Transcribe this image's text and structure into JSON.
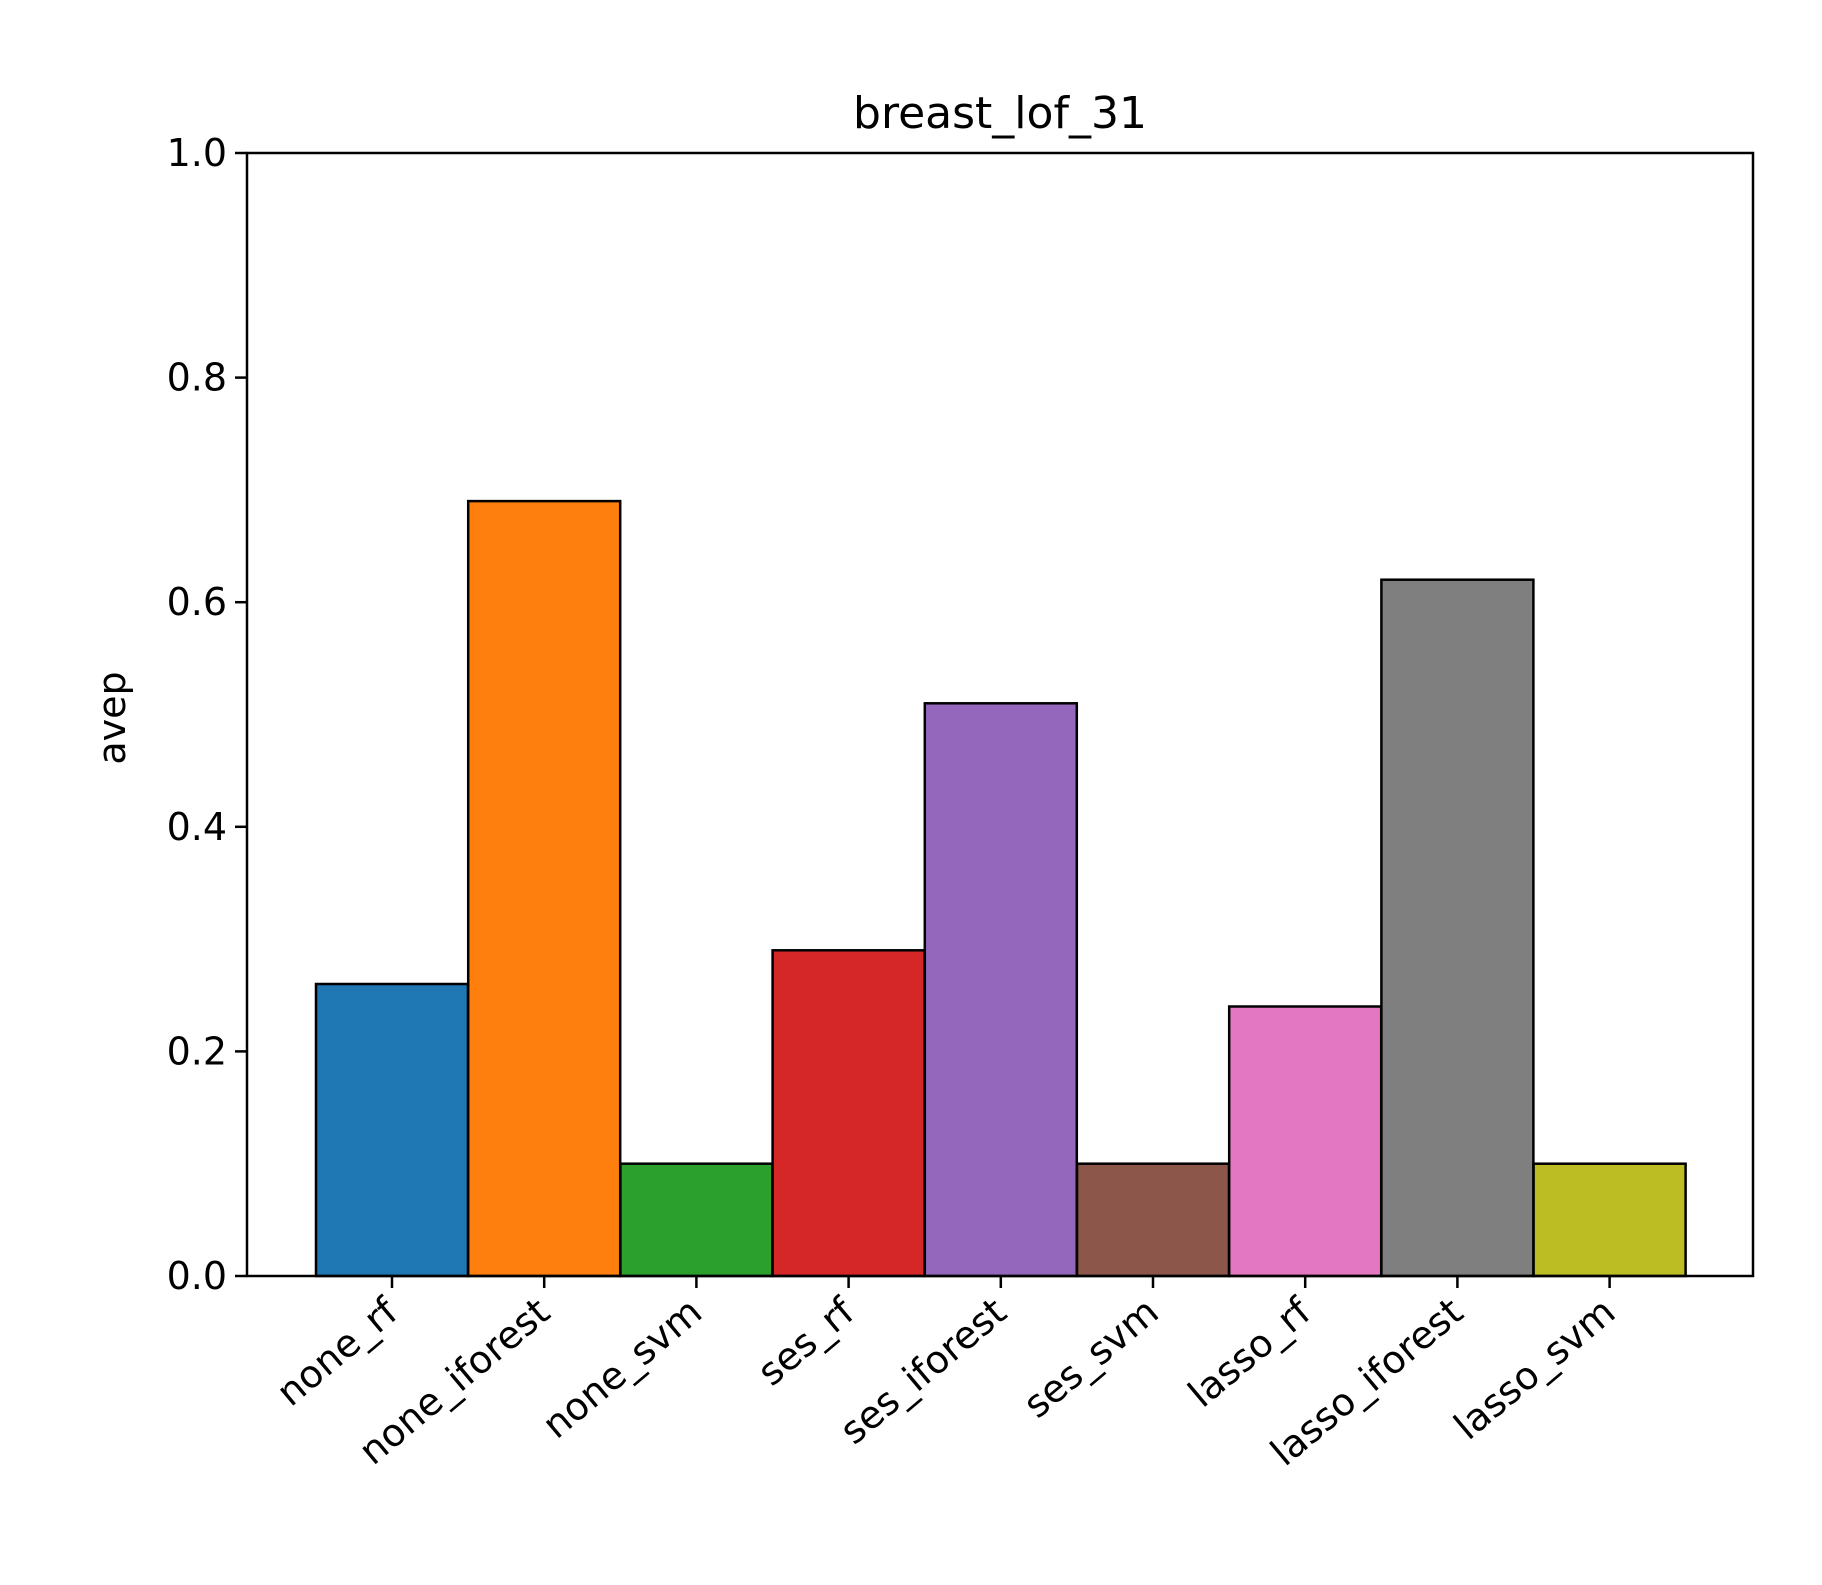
{
  "chart_data": {
    "type": "bar",
    "title": "breast_lof_31",
    "xlabel": "",
    "ylabel": "avep",
    "ylim": [
      0,
      1.0
    ],
    "yticks": [
      "0.0",
      "0.2",
      "0.4",
      "0.6",
      "0.8",
      "1.0"
    ],
    "categories": [
      "none_rf",
      "none_iforest",
      "none_svm",
      "ses_rf",
      "ses_iforest",
      "ses_svm",
      "lasso_rf",
      "lasso_iforest",
      "lasso_svm"
    ],
    "values": [
      0.26,
      0.69,
      0.1,
      0.29,
      0.51,
      0.1,
      0.24,
      0.62,
      0.1
    ],
    "colors": [
      "#1f77b4",
      "#ff7f0e",
      "#2ca02c",
      "#d62728",
      "#9467bd",
      "#8c564b",
      "#e377c2",
      "#7f7f7f",
      "#bcbd22"
    ],
    "grid": false,
    "legend": "none"
  }
}
